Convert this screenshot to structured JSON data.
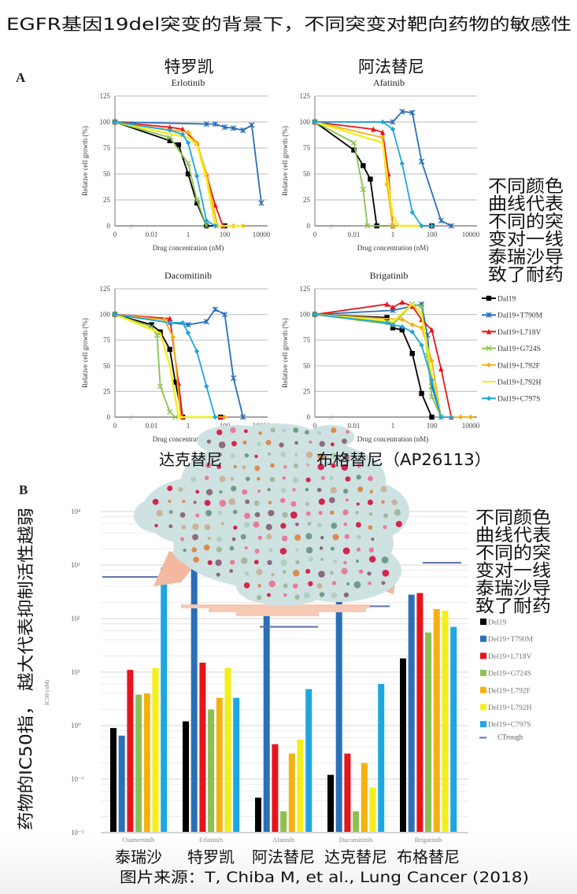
{
  "header": {
    "title": "EGFR基因19del突变的背景下，不同突变对靶向药物的敏感性"
  },
  "panels": {
    "a_label": "A",
    "b_label": "B"
  },
  "annotations": {
    "cn_titles_top": [
      "特罗凯",
      "阿法替尼"
    ],
    "cn_titles_bottom": [
      "达克替尼",
      "布格替尼（AP26113）"
    ],
    "side_note_lines": [
      "不同颜色",
      "曲线代表",
      "不同的突",
      "变对一线",
      "泰瑞沙导",
      "致了耐药"
    ],
    "b_axis_note": "药物的IC50指， 越大代表抑制活性越弱",
    "b_cn_drugs": [
      "泰瑞沙",
      "特罗凯",
      "阿法替尼",
      "达克替尼",
      "布格替尼"
    ],
    "source": "图片来源：T, Chiba M, et al., Lung Cancer (2018)"
  },
  "colors": {
    "Del19": "#000000",
    "Del19+T790M": "#2a6fb8",
    "Del19+L718V": "#e8141b",
    "Del19+G724S": "#8cc152",
    "Del19+L792F": "#f5b111",
    "Del19+L792H": "#f4ee1a",
    "Del19+C797S": "#1ea6e0",
    "CTrough": "#5a6fa8"
  },
  "legend_a": [
    {
      "label": "Dal19",
      "marker": "square"
    },
    {
      "label": "Dal19+T790M",
      "marker": "star"
    },
    {
      "label": "Dal19+L718V",
      "marker": "triangle"
    },
    {
      "label": "Dal19+G724S",
      "marker": "x"
    },
    {
      "label": "Dal19+L792F",
      "marker": "diamond"
    },
    {
      "label": "Dal19+L792H",
      "marker": "none"
    },
    {
      "label": "Dal19+C797S",
      "marker": "diamond"
    }
  ],
  "legend_b": [
    "Del19",
    "Del19+T790M",
    "Del19+L718V",
    "Del19+G724S",
    "Del19+L792F",
    "Del19+L792H",
    "Del19+C797S",
    "CTrough"
  ],
  "chart_data": [
    {
      "type": "line",
      "title": "Erlotinib",
      "xlabel": "Drug concentration (nM)",
      "ylabel": "Relative cell growth (%)",
      "xscale": "log",
      "xticks": [
        "0",
        "0.01",
        "1",
        "100",
        "10000"
      ],
      "ylim": [
        0,
        125
      ],
      "yticks": [
        "0",
        "25",
        "50",
        "75",
        "100",
        "125"
      ],
      "grid": true,
      "series": [
        {
          "name": "Del19",
          "x": [
            0,
            0.1,
            0.3,
            1,
            3,
            10,
            100
          ],
          "y": [
            100,
            82,
            78,
            50,
            22,
            0,
            0
          ]
        },
        {
          "name": "Del19+T790M",
          "x": [
            0,
            10,
            30,
            100,
            300,
            1000,
            3000,
            10000
          ],
          "y": [
            100,
            98,
            98,
            95,
            94,
            92,
            97,
            22
          ]
        },
        {
          "name": "Del19+L718V",
          "x": [
            0,
            0.1,
            0.5,
            3,
            10,
            30,
            80
          ],
          "y": [
            100,
            95,
            93,
            80,
            50,
            20,
            0
          ]
        },
        {
          "name": "Del19+G724S",
          "x": [
            0,
            0.1,
            1,
            3,
            10
          ],
          "y": [
            100,
            85,
            60,
            25,
            0
          ]
        },
        {
          "name": "Del19+L792F",
          "x": [
            0,
            1,
            3,
            10,
            40,
            300,
            1000
          ],
          "y": [
            100,
            90,
            80,
            50,
            0,
            0,
            0
          ]
        },
        {
          "name": "Del19+L792H",
          "x": [
            0,
            1,
            3,
            10,
            30,
            1000
          ],
          "y": [
            100,
            85,
            78,
            45,
            0,
            0
          ]
        },
        {
          "name": "Del19+C797S",
          "x": [
            0,
            0.1,
            0.5,
            1,
            3,
            10,
            30
          ],
          "y": [
            100,
            92,
            88,
            80,
            48,
            5,
            0
          ]
        }
      ]
    },
    {
      "type": "line",
      "title": "Afatinib",
      "xlabel": "Drug concentration (nM)",
      "ylabel": "Relative cell growth (%)",
      "xscale": "log",
      "xticks": [
        "0",
        "0.01",
        "1",
        "100",
        "10000"
      ],
      "ylim": [
        0,
        125
      ],
      "yticks": [
        "0",
        "25",
        "50",
        "75",
        "100",
        "125"
      ],
      "grid": true,
      "series": [
        {
          "name": "Del19",
          "x": [
            0,
            0.01,
            0.03,
            0.07,
            0.15,
            100
          ],
          "y": [
            100,
            73,
            58,
            45,
            0,
            0
          ]
        },
        {
          "name": "Del19+T790M",
          "x": [
            0,
            1,
            3,
            10,
            30,
            300,
            1000
          ],
          "y": [
            100,
            100,
            110,
            109,
            62,
            5,
            0
          ]
        },
        {
          "name": "Del19+L718V",
          "x": [
            0,
            0.1,
            0.3,
            0.6,
            1,
            100
          ],
          "y": [
            100,
            93,
            90,
            50,
            0,
            0
          ]
        },
        {
          "name": "Del19+G724S",
          "x": [
            0,
            0.01,
            0.03,
            0.05,
            1
          ],
          "y": [
            100,
            80,
            35,
            0,
            0
          ]
        },
        {
          "name": "Del19+L792F",
          "x": [
            0,
            0.3,
            0.5,
            1,
            30
          ],
          "y": [
            100,
            85,
            40,
            0,
            0
          ]
        },
        {
          "name": "Del19+L792H",
          "x": [
            0,
            0.3,
            1,
            2,
            30
          ],
          "y": [
            100,
            80,
            10,
            0,
            0
          ]
        },
        {
          "name": "Del19+C797S",
          "x": [
            0,
            0.3,
            1,
            3,
            10,
            30,
            100
          ],
          "y": [
            100,
            100,
            93,
            60,
            13,
            0,
            0
          ]
        }
      ]
    },
    {
      "type": "line",
      "title": "Dacomitinib",
      "xlabel": "Drug concentration (nM)",
      "ylabel": "Relative cell growth (%)",
      "xscale": "log",
      "xticks": [
        "0",
        "0.01",
        "1",
        "100",
        "10000"
      ],
      "ylim": [
        0,
        125
      ],
      "yticks": [
        "0",
        "25",
        "50",
        "75",
        "100",
        "125"
      ],
      "grid": true,
      "series": [
        {
          "name": "Del19",
          "x": [
            0,
            0.01,
            0.03,
            0.1,
            0.2,
            0.5,
            60
          ],
          "y": [
            100,
            90,
            83,
            66,
            34,
            0,
            0
          ]
        },
        {
          "name": "Del19+T790M",
          "x": [
            0,
            0.1,
            1,
            10,
            30,
            100,
            300,
            1000
          ],
          "y": [
            100,
            92,
            90,
            93,
            105,
            100,
            38,
            0
          ]
        },
        {
          "name": "Del19+L718V",
          "x": [
            0,
            0.1,
            0.3,
            0.5,
            60
          ],
          "y": [
            100,
            96,
            33,
            0,
            0
          ]
        },
        {
          "name": "Del19+G724S",
          "x": [
            0,
            0.01,
            0.02,
            0.03,
            0.1,
            0.2
          ],
          "y": [
            100,
            88,
            80,
            30,
            5,
            0
          ]
        },
        {
          "name": "Del19+L792F",
          "x": [
            0,
            0.05,
            0.15,
            0.4,
            100
          ],
          "y": [
            100,
            95,
            78,
            0,
            0
          ]
        },
        {
          "name": "Del19+L792H",
          "x": [
            0,
            0.03,
            0.1,
            0.3,
            30
          ],
          "y": [
            100,
            82,
            50,
            0,
            0
          ]
        },
        {
          "name": "Del19+C797S",
          "x": [
            0,
            0.1,
            0.5,
            1,
            3,
            10,
            30
          ],
          "y": [
            100,
            92,
            92,
            82,
            64,
            30,
            0
          ]
        }
      ]
    },
    {
      "type": "line",
      "title": "Brigatinib",
      "xlabel": "Drug concentration (nM)",
      "ylabel": "Relative cell growth (%)",
      "xscale": "log",
      "xticks": [
        "0",
        "0.01",
        "1",
        "100",
        "10000"
      ],
      "ylim": [
        0,
        125
      ],
      "yticks": [
        "0",
        "25",
        "50",
        "75",
        "100",
        "125"
      ],
      "grid": true,
      "series": [
        {
          "name": "Del19",
          "x": [
            0,
            0.5,
            1,
            3,
            10,
            30,
            100
          ],
          "y": [
            100,
            97,
            87,
            85,
            62,
            23,
            0
          ]
        },
        {
          "name": "Del19+T790M",
          "x": [
            0,
            1,
            30,
            60,
            100,
            300
          ],
          "y": [
            100,
            104,
            110,
            80,
            30,
            0
          ]
        },
        {
          "name": "Del19+L718V",
          "x": [
            0,
            0.5,
            1,
            3,
            10,
            30,
            100,
            300,
            1000
          ],
          "y": [
            100,
            110,
            107,
            112,
            108,
            95,
            85,
            47,
            0
          ]
        },
        {
          "name": "Del19+G724S",
          "x": [
            0,
            1,
            10,
            30,
            60,
            100,
            300
          ],
          "y": [
            100,
            90,
            110,
            108,
            60,
            20,
            0
          ]
        },
        {
          "name": "Del19+L792F",
          "x": [
            0,
            3,
            10,
            30,
            100,
            300,
            1000,
            3000,
            10000
          ],
          "y": [
            100,
            95,
            90,
            87,
            55,
            0,
            0,
            0,
            0
          ]
        },
        {
          "name": "Del19+L792H",
          "x": [
            0,
            1,
            10,
            30,
            100,
            300
          ],
          "y": [
            100,
            93,
            110,
            100,
            40,
            0
          ]
        },
        {
          "name": "Del19+C797S",
          "x": [
            0,
            0.5,
            1,
            3,
            10,
            30,
            100,
            300,
            1000
          ],
          "y": [
            100,
            92,
            90,
            88,
            83,
            70,
            36,
            0,
            0
          ]
        }
      ]
    },
    {
      "type": "bar",
      "ylabel": "IC50 (nM)",
      "yscale": "log",
      "ylim": [
        0.01,
        10000
      ],
      "yticks": [
        "10⁴",
        "10³",
        "10²",
        "10¹",
        "10⁰",
        "10⁻¹",
        "10⁻²"
      ],
      "categories": [
        "Osimertinib",
        "Erlotinib",
        "Afatinib",
        "Dacomitinib",
        "Brigatinib"
      ],
      "series": [
        {
          "name": "Del19",
          "values": [
            0.9,
            1.2,
            0.045,
            0.12,
            18
          ]
        },
        {
          "name": "Del19+T790M",
          "values": [
            0.65,
            1500,
            140,
            270,
            280
          ]
        },
        {
          "name": "Del19+L718V",
          "values": [
            11,
            15,
            0.45,
            0.3,
            300
          ]
        },
        {
          "name": "Del19+G724S",
          "values": [
            3.8,
            2,
            0.025,
            0.025,
            55
          ]
        },
        {
          "name": "Del19+L792F",
          "values": [
            4,
            3.3,
            0.3,
            0.2,
            150
          ]
        },
        {
          "name": "Del19+L792H",
          "values": [
            12,
            12,
            0.55,
            0.07,
            140
          ]
        },
        {
          "name": "Del19+C797S",
          "values": [
            900,
            3.3,
            4.8,
            6,
            70
          ]
        }
      ],
      "ctrough": {
        "name": "CTrough",
        "values": [
          600,
          null,
          70,
          170,
          1100
        ]
      },
      "legend": "right"
    }
  ]
}
